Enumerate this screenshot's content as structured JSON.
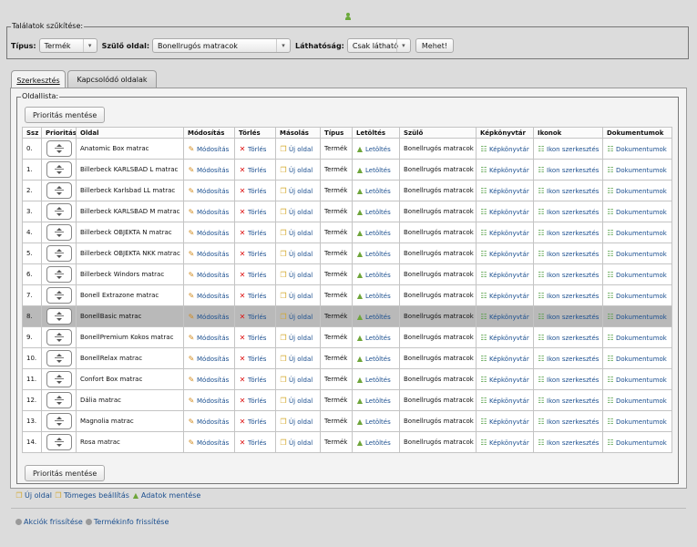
{
  "filters": {
    "legend": "Találatok szűkítése:",
    "type_label": "Típus:",
    "type_value": "Termék",
    "parent_label": "Szülő oldal:",
    "parent_value": "Bonellrugós matracok",
    "visibility_label": "Láthatóság:",
    "visibility_value": "Csak látható",
    "go_label": "Mehet!"
  },
  "tabs": [
    {
      "label": "Szerkesztés",
      "active": true
    },
    {
      "label": "Kapcsolódó oldalak",
      "active": false
    }
  ],
  "list": {
    "legend": "Oldallista:",
    "save_label": "Prioritás mentése",
    "columns": [
      "Ssz",
      "Prioritás",
      "Oldal",
      "Módosítás",
      "Törlés",
      "Másolás",
      "Típus",
      "Letöltés",
      "Szülő",
      "Képkönyvtár",
      "Ikonok",
      "Dokumentumok"
    ],
    "actions": {
      "edit": "Módosítás",
      "delete": "Törlés",
      "copy": "Új oldal",
      "download": "Letöltés",
      "gallery": "Képkönyvtár",
      "icons": "Ikon szerkesztés",
      "docs": "Dokumentumok"
    },
    "rows": [
      {
        "ssz": "0.",
        "oldal": "Anatomic Box matrac",
        "tipus": "Termék",
        "szulo": "Bonellrugós matracok"
      },
      {
        "ssz": "1.",
        "oldal": "Billerbeck KARLSBAD L matrac",
        "tipus": "Termék",
        "szulo": "Bonellrugós matracok"
      },
      {
        "ssz": "2.",
        "oldal": "Billerbeck Karlsbad LL matrac",
        "tipus": "Termék",
        "szulo": "Bonellrugós matracok"
      },
      {
        "ssz": "3.",
        "oldal": "Billerbeck KARLSBAD M matrac",
        "tipus": "Termék",
        "szulo": "Bonellrugós matracok"
      },
      {
        "ssz": "4.",
        "oldal": "Billerbeck OBJEKTA N matrac",
        "tipus": "Termék",
        "szulo": "Bonellrugós matracok"
      },
      {
        "ssz": "5.",
        "oldal": "Billerbeck OBJEKTA NKK matrac",
        "tipus": "Termék",
        "szulo": "Bonellrugós matracok"
      },
      {
        "ssz": "6.",
        "oldal": "Billerbeck Windors matrac",
        "tipus": "Termék",
        "szulo": "Bonellrugós matracok"
      },
      {
        "ssz": "7.",
        "oldal": "Bonell Extrazone matrac",
        "tipus": "Termék",
        "szulo": "Bonellrugós matracok"
      },
      {
        "ssz": "8.",
        "oldal": "BonellBasic matrac",
        "tipus": "Termék",
        "szulo": "Bonellrugós matracok",
        "highlight": true
      },
      {
        "ssz": "9.",
        "oldal": "BonellPremium Kokos matrac",
        "tipus": "Termék",
        "szulo": "Bonellrugós matracok"
      },
      {
        "ssz": "10.",
        "oldal": "BonellRelax matrac",
        "tipus": "Termék",
        "szulo": "Bonellrugós matracok"
      },
      {
        "ssz": "11.",
        "oldal": "Confort Box matrac",
        "tipus": "Termék",
        "szulo": "Bonellrugós matracok"
      },
      {
        "ssz": "12.",
        "oldal": "Dália matrac",
        "tipus": "Termék",
        "szulo": "Bonellrugós matracok"
      },
      {
        "ssz": "13.",
        "oldal": "Magnolia matrac",
        "tipus": "Termék",
        "szulo": "Bonellrugós matracok"
      },
      {
        "ssz": "14.",
        "oldal": "Rosa matrac",
        "tipus": "Termék",
        "szulo": "Bonellrugós matracok"
      }
    ]
  },
  "footer": {
    "new_page": "Új oldal",
    "bulk_settings": "Tömeges beállítás",
    "save_data": "Adatok mentése",
    "refresh_actions": "Akciók frissítése",
    "refresh_product_info": "Termékinfo frissítése"
  }
}
